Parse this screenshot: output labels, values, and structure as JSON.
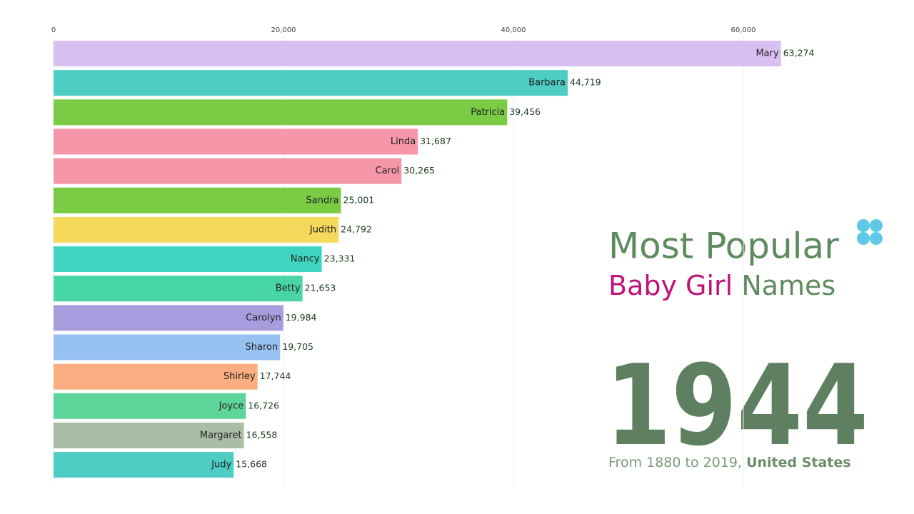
{
  "chart_data": {
    "type": "bar",
    "orientation": "horizontal",
    "title": "Most Popular",
    "subtitle": {
      "highlight": "Baby Girl",
      "rest": "Names"
    },
    "year": "1944",
    "caption": {
      "text": "From 1880 to 2019,",
      "bold": "United States"
    },
    "categories": [
      "Mary",
      "Barbara",
      "Patricia",
      "Linda",
      "Carol",
      "Sandra",
      "Judith",
      "Nancy",
      "Betty",
      "Carolyn",
      "Sharon",
      "Shirley",
      "Joyce",
      "Margaret",
      "Judy"
    ],
    "values": [
      63274,
      44719,
      39456,
      31687,
      30265,
      25001,
      24792,
      23331,
      21653,
      19984,
      19705,
      17744,
      16726,
      16558,
      15668
    ],
    "value_labels": [
      "63,274",
      "44,719",
      "39,456",
      "31,687",
      "30,265",
      "25,001",
      "24,792",
      "23,331",
      "21,653",
      "19,984",
      "19,705",
      "17,744",
      "16,726",
      "16,558",
      "15,668"
    ],
    "colors": [
      "#d9c0f0",
      "#4ecdc4",
      "#7acc44",
      "#f597a8",
      "#f597a8",
      "#7acc44",
      "#f5d95c",
      "#3ed6c0",
      "#48d6a4",
      "#a99de0",
      "#97c1f0",
      "#f9ad80",
      "#5ed69a",
      "#a9bea5",
      "#4ecdc4"
    ],
    "xlim": [
      0,
      70000
    ],
    "xticks": [
      0,
      {
        "value": 20000,
        "label": "20,000"
      },
      {
        "value": 40000,
        "label": "40,000"
      },
      {
        "value": 60000,
        "label": "60,000"
      }
    ],
    "grid": true
  }
}
